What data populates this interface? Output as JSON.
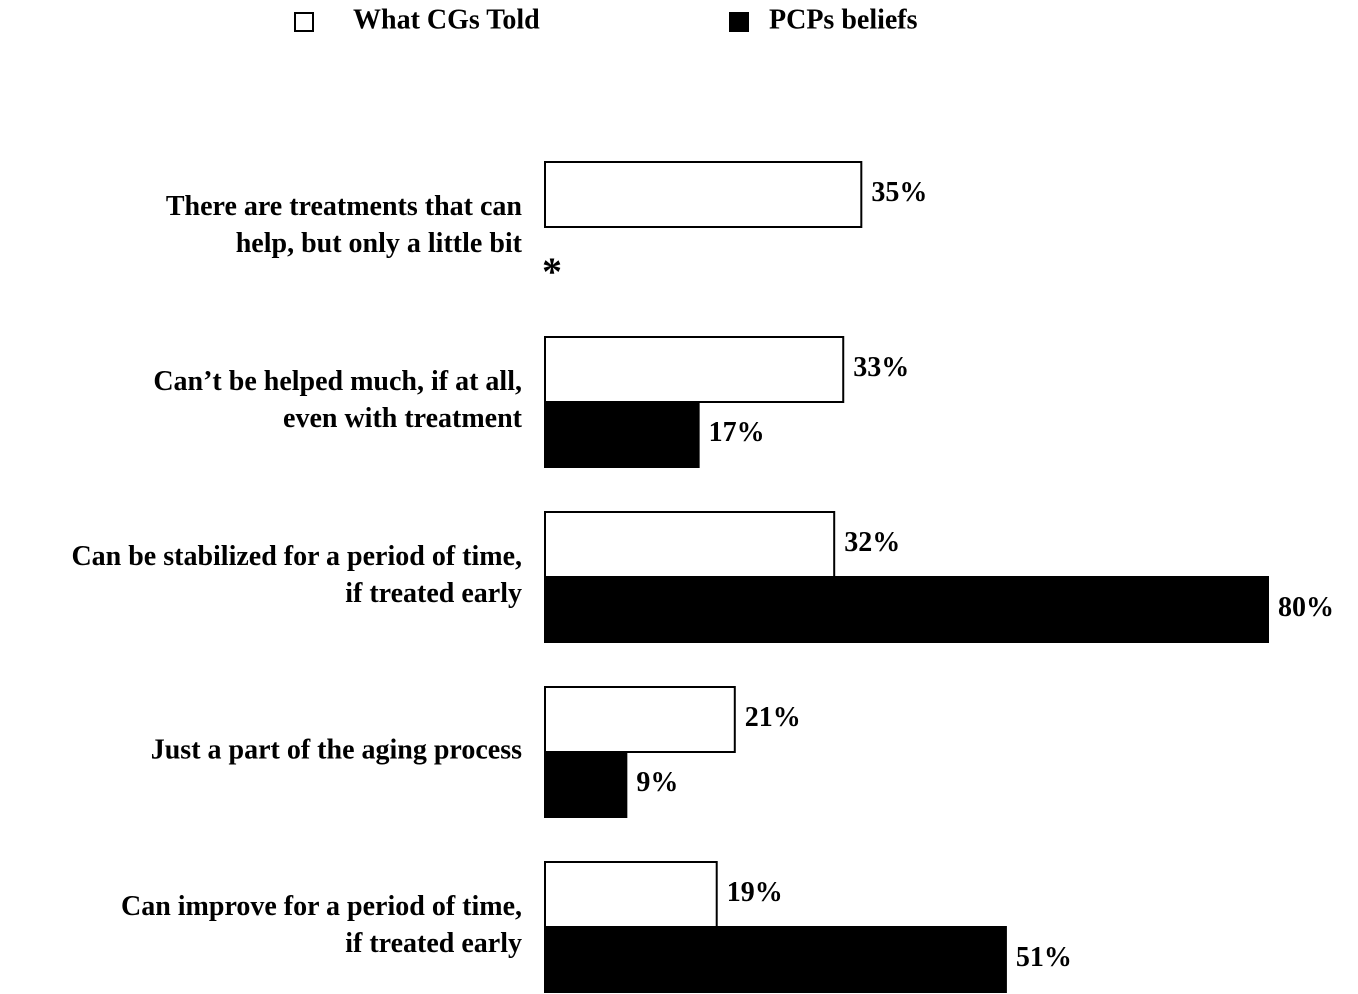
{
  "chart_data": {
    "type": "bar",
    "orientation": "horizontal",
    "categories": [
      [
        "There are treatments that can",
        "help, but only a little bit"
      ],
      [
        "Can’t be helped much, if at all,",
        "even with treatment"
      ],
      [
        "Can be stabilized for a period of time,",
        "if treated early"
      ],
      [
        "Just a part of the aging process"
      ],
      [
        "Can improve for a period of time,",
        "if treated early"
      ]
    ],
    "series": [
      {
        "name": "What CGs Told",
        "color": "#ffffff",
        "values": [
          35,
          33,
          32,
          21,
          19
        ],
        "value_labels": [
          "35%",
          "33%",
          "32%",
          "21%",
          "19%"
        ]
      },
      {
        "name": "PCPs beliefs",
        "color": "#000000",
        "values": [
          null,
          17,
          80,
          9,
          51
        ],
        "value_labels": [
          null,
          "17%",
          "80%",
          "9%",
          "51%"
        ]
      }
    ],
    "annotation": "*"
  }
}
